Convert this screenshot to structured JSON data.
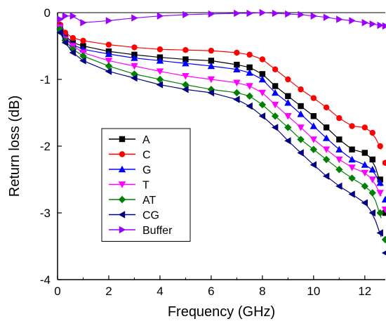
{
  "chart_data": {
    "type": "line",
    "title": "",
    "xlabel": "Frequency (GHz)",
    "ylabel": "Return loss (dB)",
    "xlim": [
      0,
      12.8
    ],
    "ylim": [
      -4,
      0
    ],
    "x_ticks": [
      0,
      2,
      4,
      6,
      8,
      10,
      12
    ],
    "y_ticks": [
      0,
      -1,
      -2,
      -3,
      -4
    ],
    "x_tick_labels": [
      "0",
      "2",
      "4",
      "6",
      "8",
      "10",
      "12"
    ],
    "y_tick_labels": [
      "0",
      "-1",
      "-2",
      "-3",
      "-4"
    ],
    "legend_position": "lower-left",
    "grid": false,
    "series": [
      {
        "name": "A",
        "color": "#000000",
        "marker": "square",
        "x": [
          0.1,
          0.3,
          0.6,
          1,
          2,
          3,
          4,
          5,
          6,
          7,
          7.5,
          8,
          8.5,
          9,
          9.5,
          10,
          10.5,
          11,
          11.5,
          12,
          12.3,
          12.6,
          12.8
        ],
        "y": [
          -0.2,
          -0.35,
          -0.45,
          -0.5,
          -0.58,
          -0.63,
          -0.67,
          -0.7,
          -0.72,
          -0.78,
          -0.82,
          -0.92,
          -1.1,
          -1.25,
          -1.4,
          -1.55,
          -1.72,
          -1.9,
          -2.05,
          -2.1,
          -2.2,
          -2.5,
          -3.0
        ]
      },
      {
        "name": "C",
        "color": "#ff0000",
        "marker": "circle",
        "x": [
          0.1,
          0.3,
          0.6,
          1,
          2,
          3,
          4,
          5,
          6,
          7,
          7.5,
          8,
          8.5,
          9,
          9.5,
          10,
          10.5,
          11,
          11.5,
          12,
          12.3,
          12.6,
          12.8
        ],
        "y": [
          -0.18,
          -0.3,
          -0.38,
          -0.42,
          -0.48,
          -0.52,
          -0.55,
          -0.56,
          -0.57,
          -0.6,
          -0.63,
          -0.7,
          -0.85,
          -1.0,
          -1.15,
          -1.28,
          -1.42,
          -1.58,
          -1.7,
          -1.72,
          -1.8,
          -2.0,
          -2.25
        ]
      },
      {
        "name": "G",
        "color": "#0000ff",
        "marker": "triangle-up",
        "x": [
          0.1,
          0.3,
          0.6,
          1,
          2,
          3,
          4,
          5,
          6,
          7,
          7.5,
          8,
          8.5,
          9,
          9.5,
          10,
          10.5,
          11,
          11.5,
          12,
          12.3,
          12.6,
          12.8
        ],
        "y": [
          -0.2,
          -0.38,
          -0.48,
          -0.55,
          -0.62,
          -0.68,
          -0.72,
          -0.76,
          -0.8,
          -0.85,
          -0.9,
          -1.0,
          -1.2,
          -1.35,
          -1.52,
          -1.7,
          -1.88,
          -2.05,
          -2.2,
          -2.28,
          -2.35,
          -2.55,
          -2.8
        ]
      },
      {
        "name": "T",
        "color": "#ff00ff",
        "marker": "triangle-down",
        "x": [
          0.1,
          0.3,
          0.6,
          1,
          2,
          3,
          4,
          5,
          6,
          7,
          7.5,
          8,
          8.5,
          9,
          9.5,
          10,
          10.5,
          11,
          11.5,
          12,
          12.3,
          12.6,
          12.8
        ],
        "y": [
          -0.22,
          -0.4,
          -0.5,
          -0.6,
          -0.72,
          -0.8,
          -0.88,
          -0.95,
          -1.0,
          -1.05,
          -1.1,
          -1.2,
          -1.38,
          -1.55,
          -1.72,
          -1.9,
          -2.05,
          -2.2,
          -2.32,
          -2.4,
          -2.5,
          -2.7,
          -2.95
        ]
      },
      {
        "name": "AT",
        "color": "#008000",
        "marker": "diamond",
        "x": [
          0.1,
          0.3,
          0.6,
          1,
          2,
          3,
          4,
          5,
          6,
          7,
          7.5,
          8,
          8.5,
          9,
          9.5,
          10,
          10.5,
          11,
          11.5,
          12,
          12.3,
          12.6,
          12.8
        ],
        "y": [
          -0.25,
          -0.42,
          -0.55,
          -0.65,
          -0.8,
          -0.92,
          -1.0,
          -1.08,
          -1.15,
          -1.2,
          -1.25,
          -1.38,
          -1.55,
          -1.72,
          -1.9,
          -2.05,
          -2.2,
          -2.35,
          -2.48,
          -2.6,
          -2.7,
          -3.0,
          -3.4
        ]
      },
      {
        "name": "CG",
        "color": "#000080",
        "marker": "triangle-left",
        "x": [
          0.1,
          0.3,
          0.6,
          1,
          2,
          3,
          4,
          5,
          6,
          7,
          7.5,
          8,
          8.5,
          9,
          9.5,
          10,
          10.5,
          11,
          11.5,
          12,
          12.3,
          12.6,
          12.8
        ],
        "y": [
          -0.3,
          -0.45,
          -0.6,
          -0.72,
          -0.88,
          -0.98,
          -1.08,
          -1.15,
          -1.2,
          -1.3,
          -1.4,
          -1.55,
          -1.72,
          -1.92,
          -2.1,
          -2.28,
          -2.45,
          -2.6,
          -2.72,
          -2.85,
          -3.0,
          -3.3,
          -3.6
        ]
      },
      {
        "name": "Buffer",
        "color": "#9900ff",
        "marker": "triangle-right",
        "x": [
          0.1,
          0.3,
          0.6,
          1,
          2,
          3,
          4,
          5,
          6,
          7,
          7.5,
          8,
          8.5,
          9,
          9.5,
          10,
          10.5,
          11,
          11.5,
          12,
          12.3,
          12.6,
          12.8
        ],
        "y": [
          -0.1,
          -0.05,
          -0.05,
          -0.15,
          -0.12,
          -0.08,
          -0.05,
          -0.03,
          -0.02,
          -0.01,
          -0.01,
          0.0,
          -0.01,
          -0.02,
          -0.03,
          -0.05,
          -0.07,
          -0.1,
          -0.12,
          -0.15,
          -0.17,
          -0.19,
          -0.2
        ]
      }
    ]
  }
}
